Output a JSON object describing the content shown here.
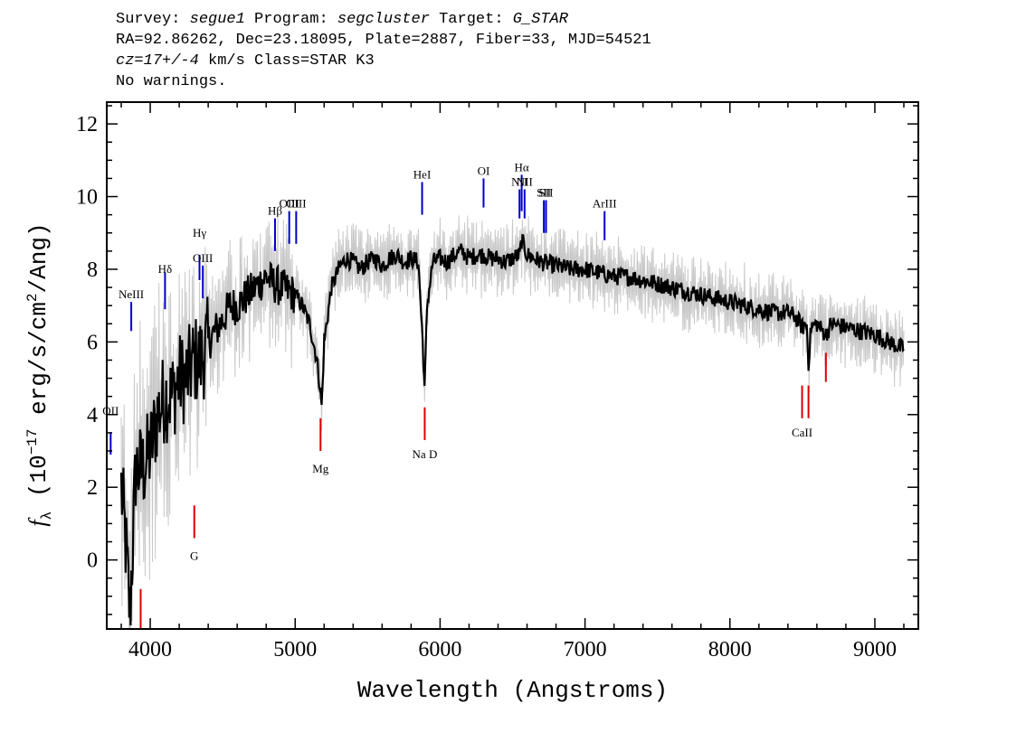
{
  "header": {
    "line1": {
      "survey_label": "Survey: ",
      "survey": "segue1",
      "program_label": " Program: ",
      "program": "segcluster",
      "target_label": " Target: ",
      "target": "G_STAR"
    },
    "line2": "RA=92.86262, Dec=23.18095, Plate=2887, Fiber=33, MJD=54521",
    "line3": {
      "cz": "cz=17+/-4",
      "rest": " km/s Class=STAR K3"
    },
    "line4": "No warnings."
  },
  "chart_data": {
    "type": "line",
    "xlabel": "Wavelength (Angstroms)",
    "ylabel": "fλ (10⁻¹⁷ erg/s/cm²/Ang)",
    "xlim": [
      3700,
      9300
    ],
    "ylim": [
      -1.9,
      12.6
    ],
    "x_ticks": [
      4000,
      5000,
      6000,
      7000,
      8000,
      9000
    ],
    "y_ticks": [
      0,
      2,
      4,
      6,
      8,
      10,
      12
    ],
    "x_tick_labels": [
      "4000",
      "5000",
      "6000",
      "7000",
      "8000",
      "9000"
    ],
    "y_tick_labels": [
      "0",
      "2",
      "4",
      "6",
      "8",
      "10",
      "12"
    ],
    "series": [
      {
        "role": "flux",
        "color": "#000000",
        "x": [
          3800,
          3830,
          3860,
          3900,
          3950,
          4000,
          4050,
          4100,
          4150,
          4200,
          4250,
          4300,
          4350,
          4400,
          4450,
          4500,
          4550,
          4600,
          4650,
          4700,
          4750,
          4800,
          4850,
          4900,
          4950,
          5000,
          5050,
          5100,
          5150,
          5170,
          5183,
          5200,
          5250,
          5300,
          5350,
          5400,
          5450,
          5500,
          5550,
          5600,
          5650,
          5700,
          5750,
          5800,
          5850,
          5880,
          5893,
          5910,
          5950,
          6000,
          6050,
          6100,
          6150,
          6200,
          6250,
          6300,
          6350,
          6400,
          6450,
          6500,
          6550,
          6563,
          6600,
          6650,
          6700,
          6800,
          6900,
          7000,
          7100,
          7200,
          7300,
          7400,
          7500,
          7600,
          7700,
          7800,
          7900,
          8000,
          8100,
          8200,
          8300,
          8400,
          8450,
          8500,
          8530,
          8542,
          8560,
          8600,
          8662,
          8700,
          8800,
          8900,
          9000,
          9100,
          9200
        ],
        "y": [
          2.0,
          0.5,
          -1.5,
          2.5,
          2.5,
          3.0,
          4.0,
          4.5,
          4.5,
          5.0,
          5.0,
          5.5,
          5.5,
          6.0,
          6.3,
          6.6,
          7.0,
          7.0,
          7.2,
          7.4,
          7.6,
          7.8,
          7.6,
          7.5,
          7.4,
          7.3,
          7.0,
          6.5,
          5.5,
          4.8,
          4.2,
          6.0,
          7.5,
          8.0,
          8.3,
          8.2,
          8.0,
          8.2,
          8.3,
          8.1,
          8.3,
          8.4,
          8.2,
          8.3,
          8.2,
          6.0,
          4.6,
          7.0,
          8.2,
          8.3,
          8.2,
          8.4,
          8.5,
          8.3,
          8.4,
          8.4,
          8.3,
          8.3,
          8.2,
          8.3,
          8.4,
          8.8,
          8.4,
          8.3,
          8.2,
          8.1,
          8.0,
          8.0,
          7.9,
          7.8,
          7.8,
          7.7,
          7.6,
          7.5,
          7.4,
          7.3,
          7.2,
          7.1,
          7.0,
          6.9,
          6.8,
          6.8,
          6.7,
          6.4,
          6.5,
          5.4,
          6.4,
          6.5,
          6.2,
          6.5,
          6.4,
          6.3,
          6.2,
          6.0,
          5.8
        ]
      }
    ],
    "emission_lines": [
      {
        "label": "OII",
        "x": 3727,
        "y_top": 3.5,
        "y_bottom": 2.9,
        "label_y": 4.0
      },
      {
        "label": "NeIII",
        "x": 3869,
        "y_top": 7.1,
        "y_bottom": 6.3,
        "label_y": 7.2
      },
      {
        "label": "Hδ",
        "x": 4102,
        "y_top": 7.9,
        "y_bottom": 6.9,
        "label_y": 7.9
      },
      {
        "label": "Hγ",
        "x": 4340,
        "y_top": 8.4,
        "y_bottom": 7.7,
        "label_y": 8.9
      },
      {
        "label": "OIII",
        "x": 4363,
        "y_top": 8.1,
        "y_bottom": 7.2,
        "label_y": 8.2
      },
      {
        "label": "Hβ",
        "x": 4861,
        "y_top": 9.4,
        "y_bottom": 8.5,
        "label_y": 9.5
      },
      {
        "label": "OIII",
        "x": 4959,
        "y_top": 9.6,
        "y_bottom": 8.7,
        "label_y": 9.7
      },
      {
        "label": "OIII",
        "x": 5007,
        "y_top": 9.6,
        "y_bottom": 8.7,
        "label_y": 9.7
      },
      {
        "label": "HeI",
        "x": 5876,
        "y_top": 10.4,
        "y_bottom": 9.5,
        "label_y": 10.5
      },
      {
        "label": "OI",
        "x": 6300,
        "y_top": 10.5,
        "y_bottom": 9.7,
        "label_y": 10.6
      },
      {
        "label": "NII",
        "x": 6548,
        "y_top": 10.2,
        "y_bottom": 9.4,
        "label_y": 10.3
      },
      {
        "label": "Hα",
        "x": 6563,
        "y_top": 10.6,
        "y_bottom": 9.6,
        "label_y": 10.7
      },
      {
        "label": "NII",
        "x": 6583,
        "y_top": 10.2,
        "y_bottom": 9.4,
        "label_y": 10.3
      },
      {
        "label": "SII",
        "x": 6716,
        "y_top": 9.9,
        "y_bottom": 9.0,
        "label_y": 10.0
      },
      {
        "label": "SII",
        "x": 6731,
        "y_top": 9.9,
        "y_bottom": 9.0,
        "label_y": 10.0
      },
      {
        "label": "ArIII",
        "x": 7135,
        "y_top": 9.6,
        "y_bottom": 8.8,
        "label_y": 9.7
      }
    ],
    "absorption_lines": [
      {
        "label": "",
        "x": 3934,
        "y_top": -0.8,
        "y_bottom": -1.9
      },
      {
        "label": "G",
        "x": 4304,
        "y_top": 1.5,
        "y_bottom": 0.6,
        "label_y": 0.0
      },
      {
        "label": "Mg",
        "x": 5175,
        "y_top": 3.9,
        "y_bottom": 3.0,
        "label_y": 2.4
      },
      {
        "label": "Na D",
        "x": 5894,
        "y_top": 4.2,
        "y_bottom": 3.3,
        "label_y": 2.8
      },
      {
        "label": "CaII",
        "x": 8498,
        "y_top": 4.8,
        "y_bottom": 3.9,
        "label_y": 3.4
      },
      {
        "label": "CaII",
        "x": 8542,
        "y_top": 4.8,
        "y_bottom": 3.9,
        "label_y": null
      },
      {
        "label": "CaII",
        "x": 8662,
        "y_top": 5.7,
        "y_bottom": 4.9,
        "label_y": null
      }
    ],
    "colors": {
      "flux": "#000000",
      "noise": "#c8c8c8",
      "emission": "#0000cc",
      "absorption": "#dd0000"
    }
  }
}
